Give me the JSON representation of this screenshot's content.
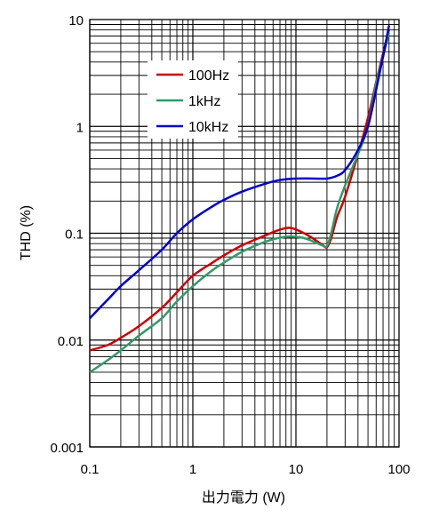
{
  "chart_data": {
    "type": "line",
    "title": "",
    "xlabel": "出力電力 (W)",
    "ylabel": "THD (%)",
    "xscale": "log",
    "yscale": "log",
    "xlim": [
      0.1,
      100
    ],
    "ylim": [
      0.001,
      10
    ],
    "grid": true,
    "legend_position": "top-left",
    "x_tick_labels": [
      "0.1",
      "1",
      "10",
      "100"
    ],
    "y_tick_labels": [
      "10",
      "1",
      "0.1",
      "0.01",
      "0.001"
    ],
    "series": [
      {
        "name": "100Hz",
        "color": "#cc0000",
        "x": [
          0.1,
          0.15,
          0.2,
          0.3,
          0.5,
          0.7,
          1,
          1.5,
          2,
          3,
          5,
          7,
          9,
          12,
          15,
          18,
          20,
          22,
          25,
          30,
          40,
          50,
          60,
          70,
          80
        ],
        "y": [
          0.008,
          0.009,
          0.0105,
          0.0135,
          0.02,
          0.028,
          0.04,
          0.052,
          0.062,
          0.077,
          0.095,
          0.108,
          0.112,
          0.1,
          0.088,
          0.078,
          0.074,
          0.09,
          0.14,
          0.22,
          0.55,
          1.2,
          2.6,
          4.8,
          8
        ]
      },
      {
        "name": "1kHz",
        "color": "#339966",
        "x": [
          0.1,
          0.15,
          0.2,
          0.3,
          0.5,
          0.7,
          1,
          1.5,
          2,
          3,
          5,
          7,
          9,
          12,
          15,
          18,
          20,
          22,
          25,
          30,
          40,
          50,
          60,
          70,
          80
        ],
        "y": [
          0.005,
          0.0065,
          0.008,
          0.011,
          0.016,
          0.023,
          0.032,
          0.044,
          0.053,
          0.067,
          0.083,
          0.091,
          0.093,
          0.09,
          0.083,
          0.077,
          0.076,
          0.1,
          0.17,
          0.28,
          0.55,
          1.0,
          2.5,
          4.5,
          7.5
        ]
      },
      {
        "name": "10kHz",
        "color": "#0000cc",
        "x": [
          0.1,
          0.15,
          0.2,
          0.3,
          0.5,
          0.7,
          1,
          1.5,
          2,
          3,
          5,
          7,
          10,
          15,
          20,
          25,
          30,
          40,
          50,
          60,
          70,
          80
        ],
        "y": [
          0.016,
          0.024,
          0.032,
          0.045,
          0.07,
          0.1,
          0.135,
          0.175,
          0.205,
          0.245,
          0.29,
          0.315,
          0.325,
          0.325,
          0.325,
          0.345,
          0.39,
          0.6,
          1.0,
          2.2,
          4.5,
          8.8
        ]
      }
    ]
  }
}
